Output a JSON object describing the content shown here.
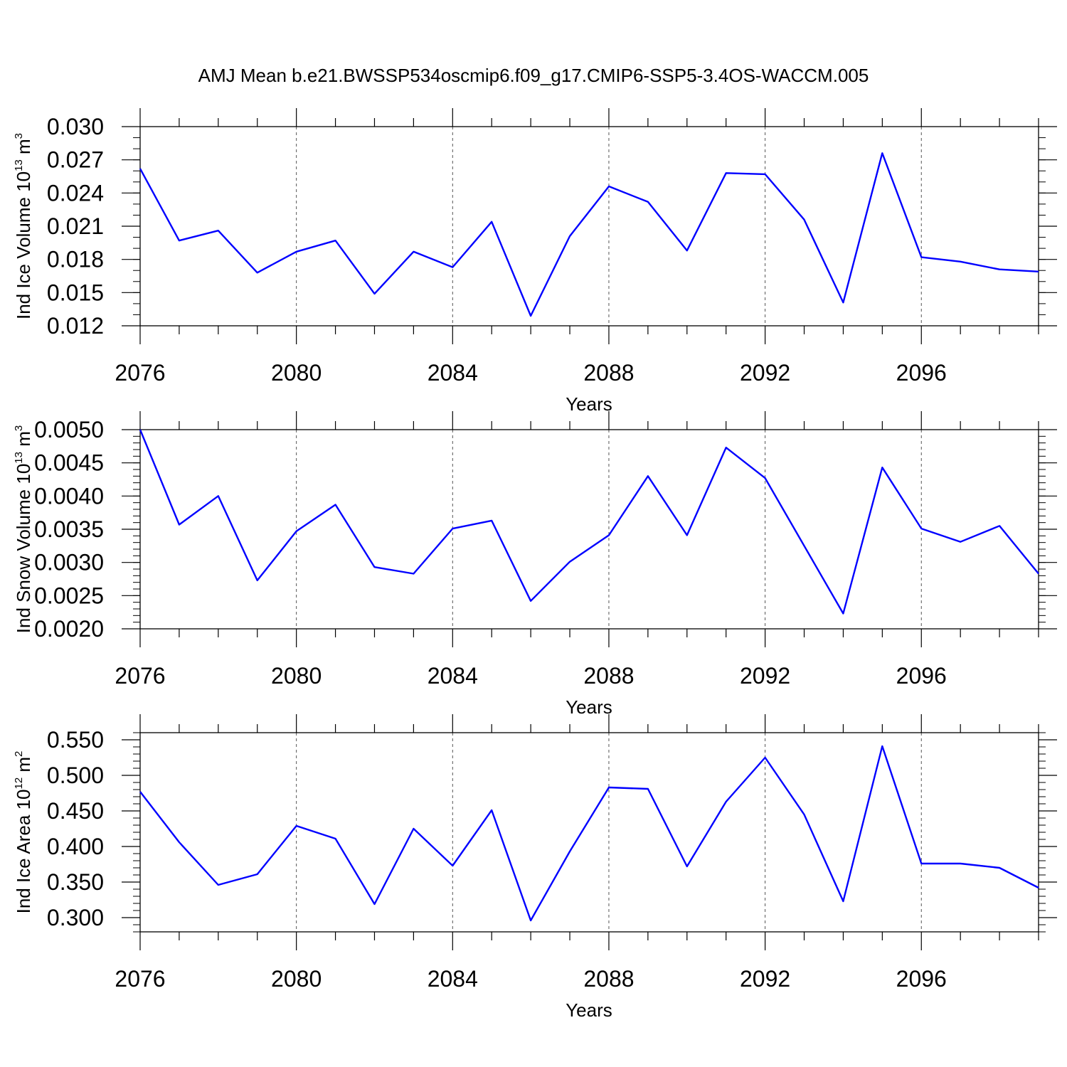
{
  "figure": {
    "title": "AMJ Mean b.e21.BWSSP534oscmip6.f09_g17.CMIP6-SSP5-3.4OS-WACCM.005"
  },
  "colors": {
    "series": "#0000ff",
    "axis": "#000000",
    "grid": "#000000"
  },
  "chart_data": [
    {
      "type": "line",
      "ylabel_main": "Ind Ice Volume 10",
      "ylabel_exp": "13",
      "ylabel_unit": " m",
      "ylabel_unit_exp": "3",
      "xlabel": "Years",
      "xlim": [
        2076,
        2099
      ],
      "ylim": [
        0.012,
        0.03
      ],
      "xticks": [
        2076,
        2080,
        2084,
        2088,
        2092,
        2096
      ],
      "xtick_labels": [
        "2076",
        "2080",
        "2084",
        "2088",
        "2092",
        "2096"
      ],
      "yticks": [
        0.012,
        0.015,
        0.018,
        0.021,
        0.024,
        0.027,
        0.03
      ],
      "ytick_labels": [
        "0.012",
        "0.015",
        "0.018",
        "0.021",
        "0.024",
        "0.027",
        "0.030"
      ],
      "y_minor_step": 0.001,
      "grid": "vertical dashed at major x ticks",
      "x": [
        2076,
        2077,
        2078,
        2079,
        2080,
        2081,
        2082,
        2083,
        2084,
        2085,
        2086,
        2087,
        2088,
        2089,
        2090,
        2091,
        2092,
        2093,
        2094,
        2095,
        2096,
        2097,
        2098,
        2099
      ],
      "values": [
        0.0262,
        0.0197,
        0.0206,
        0.0168,
        0.0187,
        0.0197,
        0.0149,
        0.0187,
        0.0173,
        0.0214,
        0.0129,
        0.0201,
        0.0246,
        0.0232,
        0.0188,
        0.0258,
        0.0257,
        0.0216,
        0.0141,
        0.0276,
        0.0182,
        0.0178,
        0.0171,
        0.0169
      ]
    },
    {
      "type": "line",
      "ylabel_main": "Ind Snow Volume 10",
      "ylabel_exp": "13",
      "ylabel_unit": " m",
      "ylabel_unit_exp": "3",
      "xlabel": "Years",
      "xlim": [
        2076,
        2099
      ],
      "ylim": [
        0.002,
        0.005
      ],
      "xticks": [
        2076,
        2080,
        2084,
        2088,
        2092,
        2096
      ],
      "xtick_labels": [
        "2076",
        "2080",
        "2084",
        "2088",
        "2092",
        "2096"
      ],
      "yticks": [
        0.002,
        0.0025,
        0.003,
        0.0035,
        0.004,
        0.0045,
        0.005
      ],
      "ytick_labels": [
        "0.0020",
        "0.0025",
        "0.0030",
        "0.0035",
        "0.0040",
        "0.0045",
        "0.0050"
      ],
      "y_minor_step": 0.0001,
      "grid": "vertical dashed at major x ticks",
      "x": [
        2076,
        2077,
        2078,
        2079,
        2080,
        2081,
        2082,
        2083,
        2084,
        2085,
        2086,
        2087,
        2088,
        2089,
        2090,
        2091,
        2092,
        2093,
        2094,
        2095,
        2096,
        2097,
        2098,
        2099
      ],
      "values": [
        0.005,
        0.00357,
        0.004,
        0.00273,
        0.00347,
        0.00387,
        0.00293,
        0.00283,
        0.00351,
        0.00363,
        0.00242,
        0.00301,
        0.00341,
        0.0043,
        0.00341,
        0.00473,
        0.00427,
        0.00325,
        0.00223,
        0.00443,
        0.00351,
        0.00331,
        0.00355,
        0.00283
      ]
    },
    {
      "type": "line",
      "ylabel_main": "Ind Ice Area 10",
      "ylabel_exp": "12",
      "ylabel_unit": " m",
      "ylabel_unit_exp": "2",
      "xlabel": "Years",
      "xlim": [
        2076,
        2099
      ],
      "ylim": [
        0.28,
        0.56
      ],
      "xticks": [
        2076,
        2080,
        2084,
        2088,
        2092,
        2096
      ],
      "xtick_labels": [
        "2076",
        "2080",
        "2084",
        "2088",
        "2092",
        "2096"
      ],
      "yticks": [
        0.3,
        0.35,
        0.4,
        0.45,
        0.5,
        0.55
      ],
      "ytick_labels": [
        "0.300",
        "0.350",
        "0.400",
        "0.450",
        "0.500",
        "0.550"
      ],
      "y_minor_step": 0.01,
      "grid": "vertical dashed at major x ticks",
      "x": [
        2076,
        2077,
        2078,
        2079,
        2080,
        2081,
        2082,
        2083,
        2084,
        2085,
        2086,
        2087,
        2088,
        2089,
        2090,
        2091,
        2092,
        2093,
        2094,
        2095,
        2096,
        2097,
        2098,
        2099
      ],
      "values": [
        0.477,
        0.406,
        0.346,
        0.361,
        0.429,
        0.411,
        0.319,
        0.425,
        0.373,
        0.451,
        0.296,
        0.393,
        0.483,
        0.481,
        0.372,
        0.463,
        0.525,
        0.445,
        0.323,
        0.541,
        0.376,
        0.376,
        0.37,
        0.342
      ]
    }
  ]
}
